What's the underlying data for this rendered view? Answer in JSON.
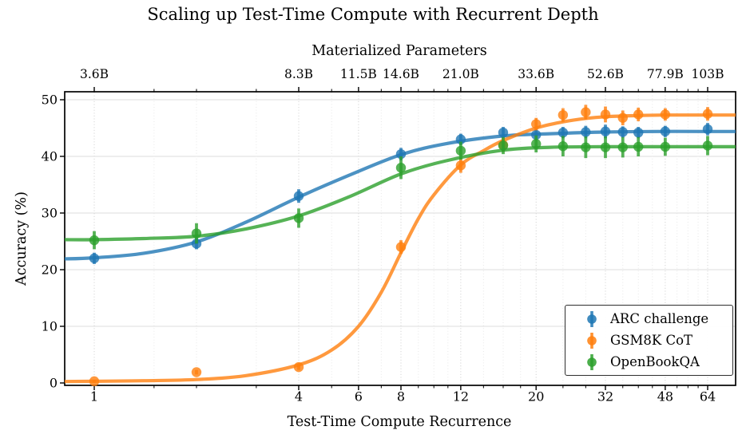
{
  "chart_data": {
    "type": "scatter",
    "title": "Scaling up Test-Time Compute with Recurrent Depth",
    "top_axis": {
      "label": "Materialized Parameters",
      "ticks": [
        {
          "r": 1,
          "label": "3.6B"
        },
        {
          "r": 4,
          "label": "8.3B"
        },
        {
          "r": 6,
          "label": "11.5B"
        },
        {
          "r": 8,
          "label": "14.6B"
        },
        {
          "r": 12,
          "label": "21.0B"
        },
        {
          "r": 20,
          "label": "33.6B"
        },
        {
          "r": 32,
          "label": "52.6B"
        },
        {
          "r": 48,
          "label": "77.9B"
        },
        {
          "r": 64,
          "label": "103B"
        }
      ]
    },
    "x_axis": {
      "label": "Test-Time Compute Recurrence",
      "scale": "log2",
      "range": [
        0.81,
        77
      ],
      "major_ticks": [
        1,
        4,
        6,
        8,
        12,
        20,
        32,
        48,
        64
      ],
      "minor_ticks": [
        1.5,
        2,
        3,
        5,
        7,
        9,
        10,
        11,
        14,
        16,
        18,
        24,
        28,
        36,
        40,
        44,
        52,
        56,
        60
      ]
    },
    "y_axis": {
      "label": "Accuracy (%)",
      "ticks": [
        0,
        10,
        20,
        30,
        40,
        50
      ],
      "range": [
        -0.4,
        51.4
      ]
    },
    "grid": true,
    "legend": {
      "position": "lower-right",
      "entries": [
        "ARC challenge",
        "GSM8K CoT",
        "OpenBookQA"
      ]
    },
    "series": [
      {
        "name": "ARC challenge",
        "color": "#1f77b4",
        "x": [
          1,
          2,
          4,
          8,
          12,
          16,
          20,
          24,
          28,
          32,
          36,
          40,
          48,
          64
        ],
        "y": [
          22.0,
          24.6,
          33.0,
          40.4,
          43.0,
          44.2,
          43.8,
          44.2,
          44.3,
          44.4,
          44.3,
          44.2,
          44.4,
          44.8
        ],
        "yerr": [
          1.0,
          1.0,
          1.2,
          1.1,
          1.0,
          1.0,
          1.0,
          1.0,
          1.1,
          1.2,
          1.0,
          1.0,
          1.0,
          1.1
        ],
        "fit_x": [
          0.81,
          1,
          1.4,
          2,
          2.8,
          4,
          5.6,
          8,
          11,
          16,
          22,
          32,
          45,
          64,
          77
        ],
        "fit_y": [
          21.9,
          22.1,
          22.9,
          24.9,
          28.4,
          32.8,
          36.6,
          40.3,
          42.3,
          43.6,
          44.0,
          44.3,
          44.4,
          44.4,
          44.4
        ]
      },
      {
        "name": "GSM8K CoT",
        "color": "#ff7f0e",
        "x": [
          1,
          2,
          4,
          8,
          12,
          16,
          20,
          24,
          28,
          32,
          36,
          40,
          48,
          64
        ],
        "y": [
          0.3,
          1.9,
          2.8,
          24.0,
          38.4,
          42.0,
          45.7,
          47.3,
          47.8,
          47.4,
          46.8,
          47.4,
          47.4,
          47.5
        ],
        "yerr": [
          0.25,
          0.4,
          0.5,
          1.2,
          1.3,
          1.2,
          1.1,
          1.2,
          1.3,
          1.4,
          1.3,
          1.2,
          1.1,
          1.2
        ],
        "fit_x": [
          0.81,
          1,
          1.4,
          2,
          2.8,
          4,
          5,
          6,
          7,
          8,
          9,
          10,
          12,
          14,
          16,
          20,
          24,
          28,
          32,
          40,
          48,
          64,
          77
        ],
        "fit_y": [
          0.25,
          0.3,
          0.4,
          0.6,
          1.3,
          3.2,
          5.8,
          10.0,
          16.0,
          23.0,
          29.0,
          33.2,
          38.5,
          41.0,
          42.8,
          45.0,
          46.1,
          46.7,
          47.0,
          47.2,
          47.3,
          47.3,
          47.3
        ]
      },
      {
        "name": "OpenBookQA",
        "color": "#2ca02c",
        "x": [
          1,
          2,
          4,
          8,
          12,
          16,
          20,
          24,
          28,
          32,
          36,
          40,
          48,
          64
        ],
        "y": [
          25.2,
          26.4,
          29.1,
          38.0,
          41.0,
          41.9,
          42.2,
          41.8,
          41.6,
          41.6,
          41.6,
          41.7,
          41.7,
          41.9
        ],
        "yerr": [
          1.6,
          1.8,
          1.7,
          2.0,
          1.6,
          1.5,
          1.5,
          1.8,
          1.9,
          1.9,
          1.8,
          1.7,
          1.6,
          1.7
        ],
        "fit_x": [
          0.81,
          1,
          1.4,
          2,
          2.8,
          4,
          5.6,
          8,
          11,
          16,
          22,
          32,
          45,
          64,
          77
        ],
        "fit_y": [
          25.3,
          25.3,
          25.5,
          25.9,
          27.2,
          29.5,
          32.8,
          36.9,
          39.3,
          41.1,
          41.6,
          41.7,
          41.7,
          41.7,
          41.7
        ]
      }
    ]
  }
}
